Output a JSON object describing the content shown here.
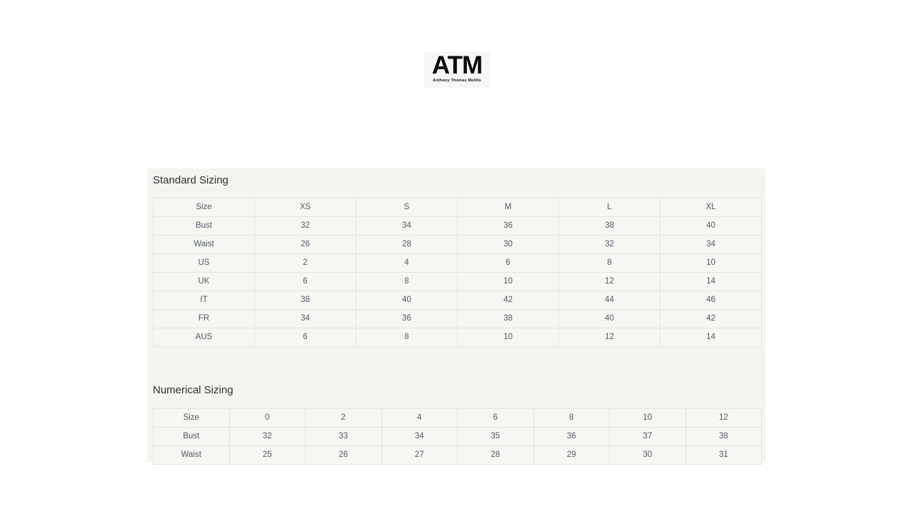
{
  "logo": {
    "title": "ATM",
    "subtitle": "Anthony Thomas Melillo"
  },
  "standard_sizing": {
    "heading": "Standard Sizing",
    "columns": [
      "Size",
      "XS",
      "S",
      "M",
      "L",
      "XL"
    ],
    "rows": [
      {
        "label": "Bust",
        "values": [
          "32",
          "34",
          "36",
          "38",
          "40"
        ]
      },
      {
        "label": "Waist",
        "values": [
          "26",
          "28",
          "30",
          "32",
          "34"
        ]
      },
      {
        "label": "US",
        "values": [
          "2",
          "4",
          "6",
          "8",
          "10"
        ]
      },
      {
        "label": "UK",
        "values": [
          "6",
          "8",
          "10",
          "12",
          "14"
        ]
      },
      {
        "label": "IT",
        "values": [
          "38",
          "40",
          "42",
          "44",
          "46"
        ]
      },
      {
        "label": "FR",
        "values": [
          "34",
          "36",
          "38",
          "40",
          "42"
        ]
      },
      {
        "label": "AUS",
        "values": [
          "6",
          "8",
          "10",
          "12",
          "14"
        ]
      }
    ]
  },
  "numerical_sizing": {
    "heading": "Numerical Sizing",
    "columns": [
      "Size",
      "0",
      "2",
      "4",
      "6",
      "8",
      "10",
      "12"
    ],
    "rows": [
      {
        "label": "Bust",
        "values": [
          "32",
          "33",
          "34",
          "35",
          "36",
          "37",
          "38"
        ]
      },
      {
        "label": "Waist",
        "values": [
          "25",
          "26",
          "27",
          "28",
          "29",
          "30",
          "31"
        ]
      }
    ]
  },
  "colors": {
    "page_bg": "#ffffff",
    "panel_bg": "#f4f4f1",
    "cell_bg": "#f6f6f3",
    "cell_border": "#e3e3df",
    "table_text": "#4e5b63",
    "heading_text": "#2e2e2e",
    "logo_text": "#0a0a0a",
    "logo_bg": "#f7f6f4"
  }
}
